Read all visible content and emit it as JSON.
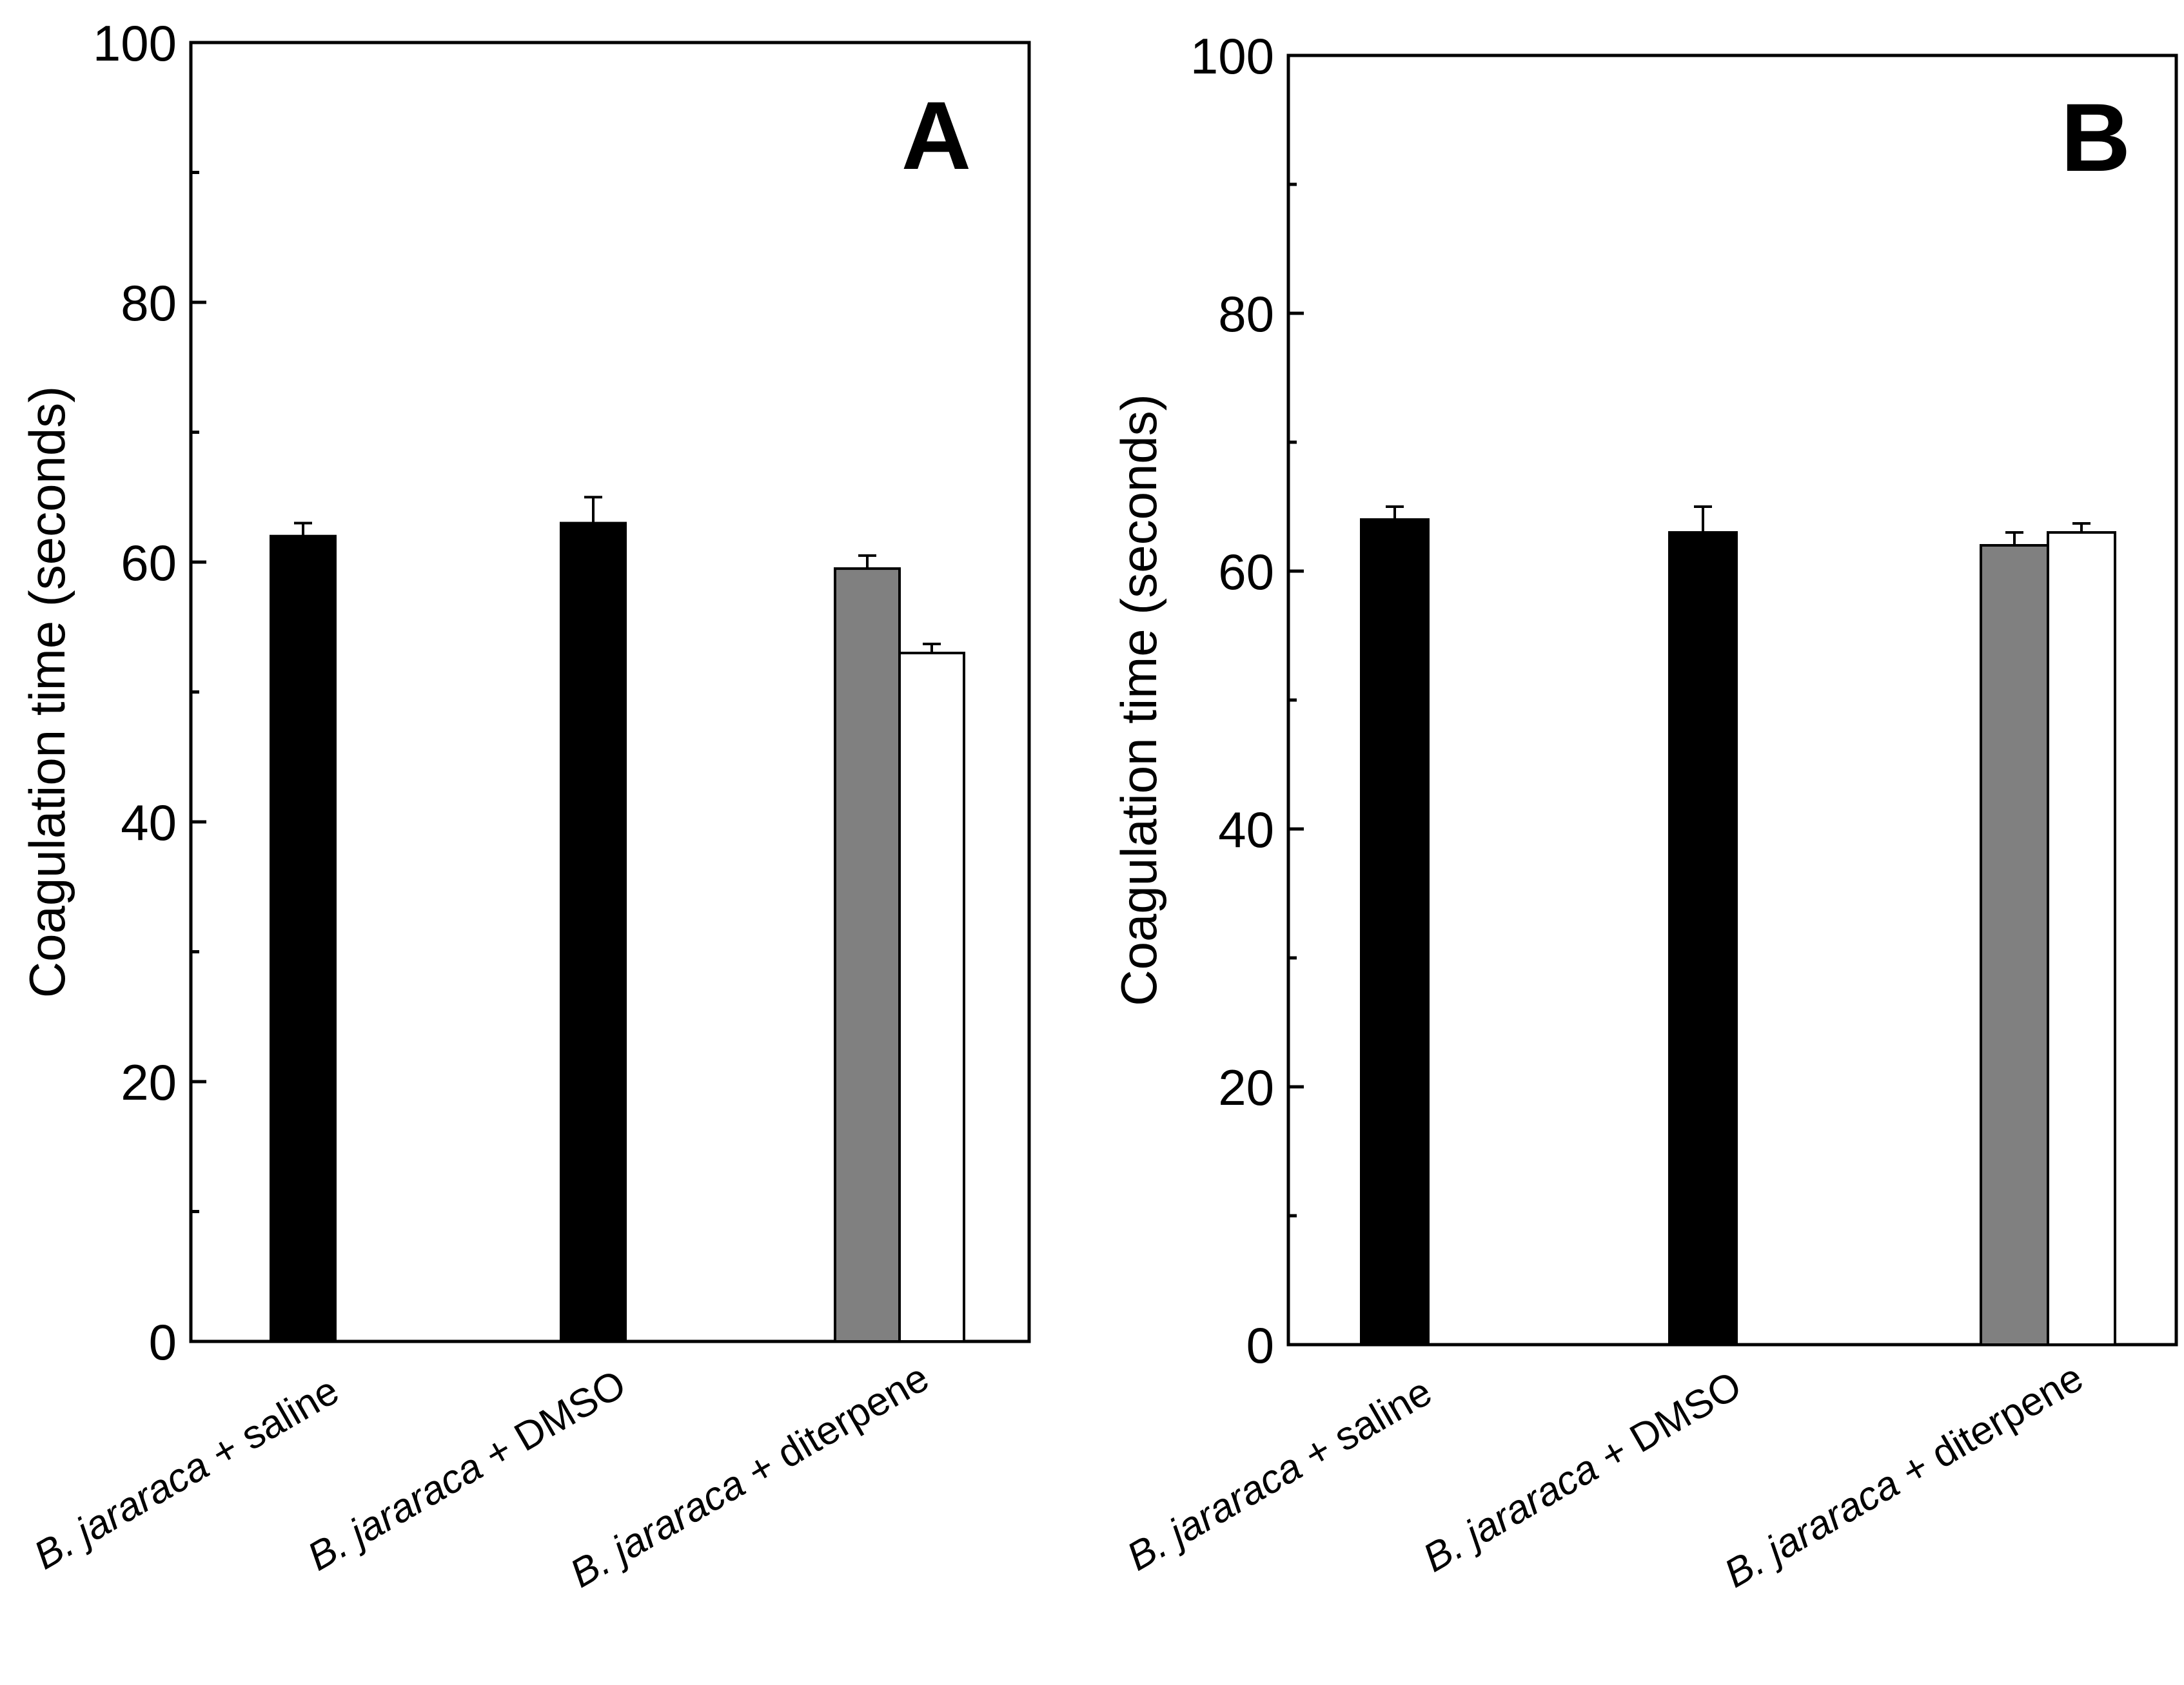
{
  "chart_data": [
    {
      "type": "bar",
      "panel_label": "A",
      "title": "",
      "xlabel": "",
      "ylabel": "Coagulation time (seconds)",
      "ylim": [
        0,
        100
      ],
      "yticks": [
        "0",
        "20",
        "40",
        "60",
        "80",
        "100"
      ],
      "categories": [
        {
          "species": "B. jararaca",
          "treatment": " + saline"
        },
        {
          "species": "B. jararaca",
          "treatment": " + DMSO"
        },
        {
          "species": "B. jararaca",
          "treatment": " + diterpene"
        }
      ],
      "bars": [
        {
          "category": 0,
          "value": 62,
          "error": 1,
          "fill": "#000000"
        },
        {
          "category": 1,
          "value": 63,
          "error": 2,
          "fill": "#000000"
        },
        {
          "category": 2,
          "value": 59.5,
          "error": 1,
          "fill": "#808080"
        },
        {
          "category": 2,
          "value": 53,
          "error": 0.7,
          "fill": "#ffffff"
        }
      ]
    },
    {
      "type": "bar",
      "panel_label": "B",
      "title": "",
      "xlabel": "",
      "ylabel": "Coagulation time (seconds)",
      "ylim": [
        0,
        100
      ],
      "yticks": [
        "0",
        "20",
        "40",
        "60",
        "80",
        "100"
      ],
      "categories": [
        {
          "species": "B. jararaca",
          "treatment": " + saline"
        },
        {
          "species": "B. jararaca",
          "treatment": " + DMSO"
        },
        {
          "species": "B. jararaca",
          "treatment": " + diterpene"
        }
      ],
      "bars": [
        {
          "category": 0,
          "value": 64,
          "error": 1,
          "fill": "#000000"
        },
        {
          "category": 1,
          "value": 63,
          "error": 2,
          "fill": "#000000"
        },
        {
          "category": 2,
          "value": 62,
          "error": 1,
          "fill": "#808080"
        },
        {
          "category": 2,
          "value": 63,
          "error": 0.7,
          "fill": "#ffffff"
        }
      ]
    }
  ]
}
